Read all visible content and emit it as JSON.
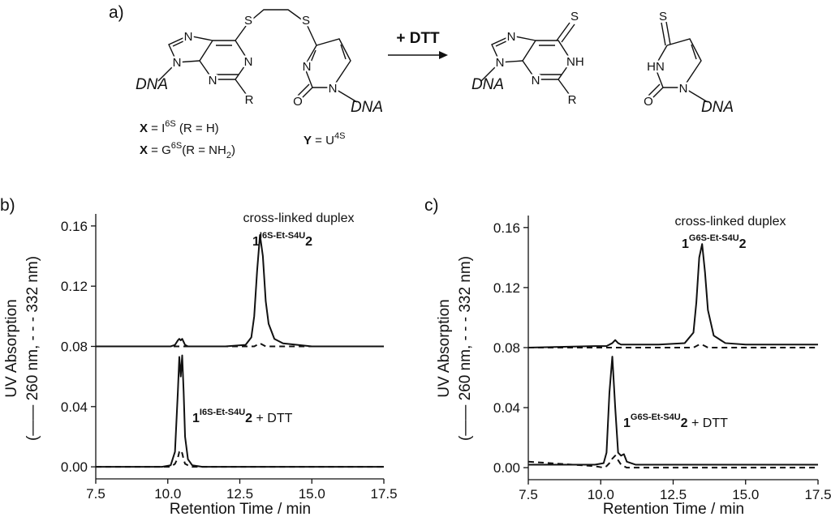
{
  "scheme": {
    "label": "a)",
    "reagent": "+ DTT",
    "atoms": [
      "N",
      "N",
      "N",
      "N",
      "R",
      "S",
      "S",
      "N",
      "N",
      "O",
      "DNA",
      "DNA",
      "N",
      "N",
      "NH",
      "N",
      "R",
      "S",
      "S",
      "HN",
      "N",
      "O",
      "DNA",
      "DNA"
    ],
    "captions": [
      [
        "X",
        " = I",
        "6S",
        "  (R = H)"
      ],
      [
        "X",
        " = G",
        "6S",
        "(R = NH",
        "2",
        ")"
      ],
      [
        "Y",
        " = U",
        "4S"
      ]
    ]
  },
  "chart_data": [
    {
      "type": "line",
      "panel": "b)",
      "xlabel": "Retention Time / min",
      "ylabel": "UV Absorption",
      "ylabel_note": "(—— 260 nm, - - - 332 nm)",
      "annotations": [
        [
          "cross-linked duplex"
        ],
        [
          "1",
          "I6S-Et-S4U",
          "2"
        ],
        [
          "1",
          "I6S-Et-S4U",
          "2",
          " + DTT"
        ]
      ],
      "xlim": [
        7.5,
        17.5
      ],
      "ylim": [
        -0.008,
        0.168
      ],
      "xticks": [
        7.5,
        {
          "value": 10,
          "label": "10.0"
        },
        12.5,
        {
          "value": 15,
          "label": "15.0"
        },
        17.5
      ],
      "yticks": [
        {
          "value": 0,
          "label": "0.00"
        },
        {
          "value": 0.04,
          "label": "0.04"
        },
        {
          "value": 0.08,
          "label": "0.08"
        },
        {
          "value": 0.12,
          "label": "0.12"
        },
        {
          "value": 0.16,
          "label": "0.16"
        }
      ],
      "x": [
        7.5,
        9.8,
        10.1,
        10.25,
        10.35,
        10.4,
        10.45,
        10.5,
        10.55,
        10.6,
        10.7,
        10.85,
        11.2,
        12.0,
        12.7,
        12.9,
        13.0,
        13.1,
        13.2,
        13.3,
        13.4,
        13.5,
        13.7,
        14.0,
        15.0,
        17.5
      ],
      "series": [
        {
          "color": "#111111",
          "dashed": false,
          "values": [
            0.08,
            0.08,
            0.08,
            0.081,
            0.084,
            0.085,
            0.084,
            0.085,
            0.083,
            0.081,
            0.08,
            0.08,
            0.08,
            0.08,
            0.081,
            0.086,
            0.1,
            0.13,
            0.154,
            0.14,
            0.11,
            0.095,
            0.085,
            0.082,
            0.08,
            0.08
          ]
        },
        {
          "color": "#111111",
          "dashed": true,
          "values": [
            0.08,
            0.08,
            0.08,
            0.08,
            0.08,
            0.08,
            0.08,
            0.08,
            0.08,
            0.08,
            0.08,
            0.08,
            0.08,
            0.08,
            0.08,
            0.08,
            0.08,
            0.081,
            0.082,
            0.081,
            0.08,
            0.08,
            0.08,
            0.08,
            0.08,
            0.08
          ]
        },
        {
          "color": "#111111",
          "dashed": false,
          "values": [
            0,
            0,
            0.001,
            0.01,
            0.05,
            0.073,
            0.06,
            0.074,
            0.05,
            0.02,
            0.005,
            0.001,
            0,
            0,
            0,
            0,
            0,
            0,
            0,
            0,
            0,
            0,
            0,
            0,
            0,
            0
          ]
        },
        {
          "color": "#111111",
          "dashed": true,
          "values": [
            0,
            0,
            0,
            0.002,
            0.006,
            0.01,
            0.011,
            0.009,
            0.005,
            0.002,
            0.001,
            0,
            0,
            0,
            0,
            0,
            0,
            0,
            0,
            0,
            0,
            0,
            0,
            0,
            0,
            0
          ]
        }
      ]
    },
    {
      "type": "line",
      "panel": "c)",
      "xlabel": "Retention Time / min",
      "ylabel": "UV Absorption",
      "ylabel_note": "(—— 260 nm, - - - 332 nm)",
      "annotations": [
        [
          "cross-linked duplex"
        ],
        [
          "1",
          "G6S-Et-S4U",
          "2"
        ],
        [
          "1",
          "G6S-Et-S4U",
          "2",
          " + DTT"
        ]
      ],
      "xlim": [
        7.5,
        17.5
      ],
      "ylim": [
        -0.008,
        0.168
      ],
      "xticks": [
        7.5,
        {
          "value": 10,
          "label": "10.0"
        },
        12.5,
        {
          "value": 15,
          "label": "15.0"
        },
        17.5
      ],
      "yticks": [
        {
          "value": 0,
          "label": "0.00"
        },
        {
          "value": 0.04,
          "label": "0.04"
        },
        {
          "value": 0.08,
          "label": "0.08"
        },
        {
          "value": 0.12,
          "label": "0.12"
        },
        {
          "value": 0.16,
          "label": "0.16"
        }
      ],
      "x": [
        7.5,
        9.8,
        10.1,
        10.2,
        10.3,
        10.4,
        10.5,
        10.6,
        10.7,
        10.8,
        10.9,
        11.2,
        12.0,
        12.9,
        13.2,
        13.3,
        13.4,
        13.5,
        13.6,
        13.7,
        13.9,
        14.3,
        15.0,
        17.5
      ],
      "series": [
        {
          "color": "#111111",
          "dashed": false,
          "values": [
            0.08,
            0.081,
            0.081,
            0.081,
            0.082,
            0.083,
            0.085,
            0.083,
            0.082,
            0.082,
            0.082,
            0.082,
            0.082,
            0.083,
            0.09,
            0.11,
            0.14,
            0.149,
            0.13,
            0.105,
            0.088,
            0.083,
            0.082,
            0.082
          ]
        },
        {
          "color": "#111111",
          "dashed": true,
          "values": [
            0.08,
            0.08,
            0.08,
            0.08,
            0.08,
            0.08,
            0.08,
            0.08,
            0.08,
            0.08,
            0.08,
            0.08,
            0.08,
            0.08,
            0.08,
            0.081,
            0.082,
            0.082,
            0.081,
            0.08,
            0.08,
            0.08,
            0.08,
            0.08
          ]
        },
        {
          "color": "#111111",
          "dashed": false,
          "values": [
            0.002,
            0.002,
            0.003,
            0.01,
            0.05,
            0.074,
            0.04,
            0.01,
            0.008,
            0.009,
            0.004,
            0.002,
            0.002,
            0.002,
            0.002,
            0.002,
            0.002,
            0.002,
            0.002,
            0.002,
            0.002,
            0.002,
            0.002,
            0.002
          ]
        },
        {
          "color": "#111111",
          "dashed": true,
          "values": [
            0.004,
            0.001,
            0,
            0.001,
            0.003,
            0.006,
            0.008,
            0.005,
            0.002,
            0.001,
            0,
            0,
            0,
            0,
            0,
            0,
            0,
            0,
            0,
            0,
            0,
            0,
            0,
            0
          ]
        }
      ]
    }
  ]
}
